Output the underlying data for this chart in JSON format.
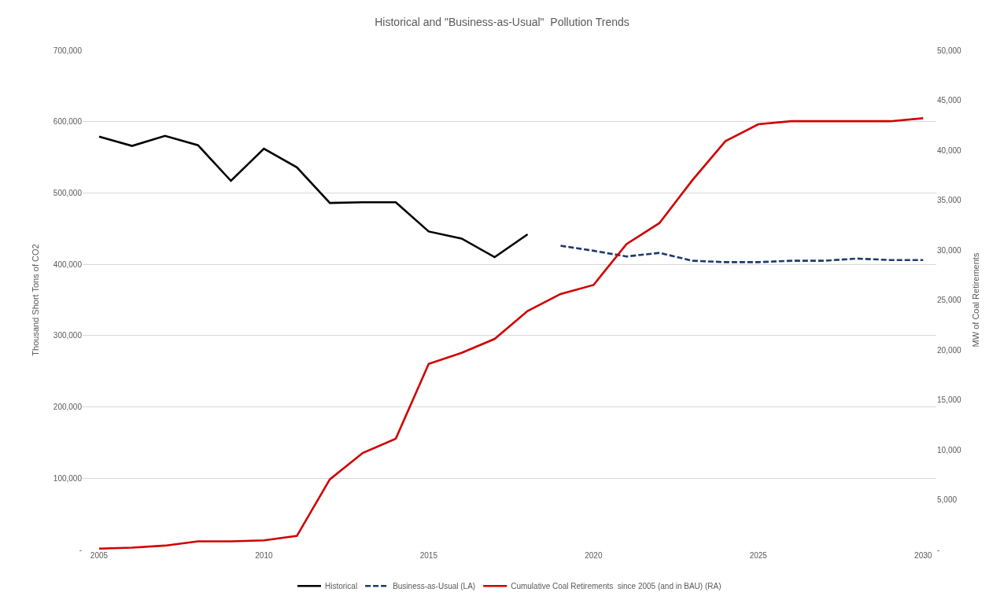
{
  "chart_data": {
    "type": "line",
    "title": "Historical and \"Business-as-Usual\"  Pollution Trends",
    "ylabel": "Thousand Short Tons of CO2",
    "y2label": "MW of Coal Retirements",
    "x": [
      2005,
      2006,
      2007,
      2008,
      2009,
      2010,
      2011,
      2012,
      2013,
      2014,
      2015,
      2016,
      2017,
      2018,
      2019,
      2020,
      2021,
      2022,
      2023,
      2024,
      2025,
      2026,
      2027,
      2028,
      2029,
      2030
    ],
    "series": [
      {
        "name": "Historical",
        "color": "#000000",
        "line_style": "solid",
        "values": [
          579000,
          566000,
          580000,
          567000,
          517000,
          562000,
          536000,
          486000,
          487000,
          487000,
          446000,
          436000,
          410000,
          442000,
          null,
          null,
          null,
          null,
          null,
          null,
          null,
          null,
          null,
          null,
          null,
          null
        ]
      },
      {
        "name": "Business-as-Usual (LA)",
        "color": "#1f3a6e",
        "line_style": "dashed",
        "values": [
          null,
          null,
          null,
          null,
          null,
          null,
          null,
          null,
          null,
          null,
          null,
          null,
          null,
          null,
          426000,
          419000,
          411000,
          416000,
          405000,
          403000,
          403000,
          405000,
          405000,
          408000,
          406000,
          406000
        ]
      },
      {
        "name": "Cumulative Coal Retirements  since 2005 (and in BAU) (RA)",
        "color": "#d00000",
        "line_style": "solid",
        "axis": "y2",
        "values": [
          100,
          200,
          400,
          830,
          830,
          930,
          1370,
          7030,
          9680,
          11100,
          18600,
          19700,
          21100,
          23900,
          25600,
          26500,
          30600,
          32700,
          37000,
          40900,
          42600,
          42900,
          42900,
          42900,
          42900,
          43200
        ]
      }
    ],
    "xlim": [
      2004.5,
      2030.4
    ],
    "xticks": [
      2005,
      2010,
      2015,
      2020,
      2025,
      2030
    ],
    "ylim": [
      0,
      700000
    ],
    "yticks": [
      {
        "value": 0,
        "label": "-"
      },
      {
        "value": 100000,
        "label": "100,000"
      },
      {
        "value": 200000,
        "label": "200,000"
      },
      {
        "value": 300000,
        "label": "300,000"
      },
      {
        "value": 400000,
        "label": "400,000"
      },
      {
        "value": 500000,
        "label": "500,000"
      },
      {
        "value": 600000,
        "label": "600,000"
      },
      {
        "value": 700000,
        "label": "700,000"
      }
    ],
    "y2lim": [
      0,
      50000
    ],
    "y2ticks": [
      {
        "value": 0,
        "label": "-"
      },
      {
        "value": 5000,
        "label": "5,000"
      },
      {
        "value": 10000,
        "label": "10,000"
      },
      {
        "value": 15000,
        "label": "15,000"
      },
      {
        "value": 20000,
        "label": "20,000"
      },
      {
        "value": 25000,
        "label": "25,000"
      },
      {
        "value": 30000,
        "label": "30,000"
      },
      {
        "value": 35000,
        "label": "35,000"
      },
      {
        "value": 40000,
        "label": "40,000"
      },
      {
        "value": 45000,
        "label": "45,000"
      },
      {
        "value": 50000,
        "label": "50,000"
      }
    ],
    "grid": "y",
    "legend": "bottom",
    "marker": "none"
  }
}
